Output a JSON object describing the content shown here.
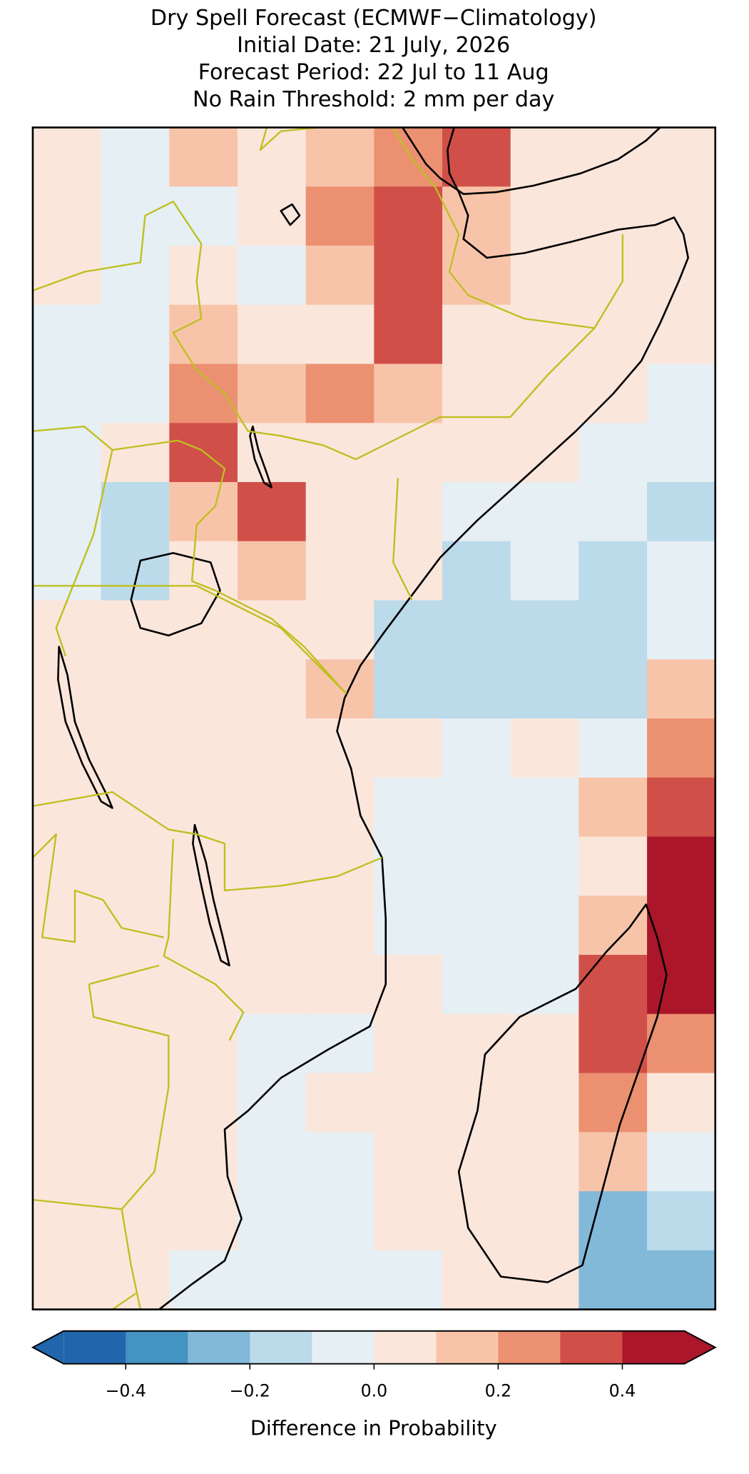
{
  "chart_data": {
    "type": "heatmap",
    "title": [
      "Dry Spell Forecast (ECMWF−Climatology)",
      "Initial Date: 21 July, 2026",
      "Forecast Period: 22 Jul to 11 Aug",
      "No Rain Threshold: 2 mm per day"
    ],
    "z": [
      [
        0.05,
        -0.05,
        0.1,
        0.05,
        0.1,
        0.2,
        0.3,
        0.05,
        0.05,
        0.05
      ],
      [
        0.05,
        -0.05,
        -0.05,
        0.05,
        0.2,
        0.3,
        0.1,
        0.05,
        0.05,
        0.05
      ],
      [
        0.05,
        -0.05,
        0.05,
        -0.05,
        0.1,
        0.35,
        0.15,
        0.05,
        0.05,
        0.05
      ],
      [
        -0.05,
        -0.05,
        0.15,
        0.05,
        0.05,
        0.3,
        0.05,
        0.05,
        0.05,
        0.05
      ],
      [
        -0.05,
        -0.05,
        0.2,
        0.15,
        0.2,
        0.1,
        0.05,
        0.05,
        0.05,
        -0.05
      ],
      [
        -0.05,
        0.05,
        0.3,
        0.05,
        0.05,
        0.05,
        0.05,
        0.05,
        -0.05,
        -0.05
      ],
      [
        -0.05,
        -0.15,
        0.15,
        0.35,
        0.05,
        0.05,
        -0.05,
        -0.05,
        -0.05,
        -0.15
      ],
      [
        -0.05,
        -0.15,
        0.05,
        0.15,
        0.05,
        0.05,
        -0.15,
        -0.05,
        -0.15,
        -0.05
      ],
      [
        0.05,
        0.05,
        0.05,
        0.05,
        0.05,
        -0.15,
        -0.2,
        -0.15,
        -0.2,
        -0.05
      ],
      [
        0.05,
        0.05,
        0.05,
        0.05,
        0.15,
        -0.15,
        -0.15,
        -0.15,
        -0.15,
        0.15
      ],
      [
        0.05,
        0.05,
        0.05,
        0.05,
        0.05,
        0.05,
        -0.05,
        0.05,
        -0.05,
        0.25
      ],
      [
        0.05,
        0.05,
        0.05,
        0.05,
        0.05,
        -0.05,
        -0.05,
        -0.05,
        0.15,
        0.35
      ],
      [
        0.05,
        0.05,
        0.05,
        0.05,
        0.05,
        -0.05,
        -0.05,
        -0.05,
        0.05,
        0.4
      ],
      [
        0.05,
        0.05,
        0.05,
        0.05,
        0.05,
        -0.05,
        -0.05,
        -0.05,
        0.15,
        0.45
      ],
      [
        0.05,
        0.05,
        0.05,
        0.05,
        0.05,
        0.05,
        -0.05,
        -0.05,
        0.35,
        0.42
      ],
      [
        0.05,
        0.05,
        0.05,
        -0.05,
        -0.05,
        0.05,
        0.05,
        0.05,
        0.35,
        0.25
      ],
      [
        0.05,
        0.05,
        0.05,
        -0.05,
        0.05,
        0.05,
        0.05,
        0.05,
        0.25,
        0.05
      ],
      [
        0.05,
        0.05,
        0.05,
        -0.05,
        -0.05,
        0.05,
        0.05,
        0.05,
        0.15,
        -0.05
      ],
      [
        0.05,
        0.05,
        0.05,
        -0.05,
        -0.05,
        0.05,
        0.05,
        0.05,
        -0.25,
        -0.15
      ],
      [
        0.05,
        0.05,
        -0.05,
        -0.05,
        -0.05,
        -0.05,
        0.05,
        0.05,
        -0.25,
        -0.3
      ]
    ],
    "levels": [
      -0.5,
      -0.4,
      -0.3,
      -0.2,
      -0.1,
      0,
      0.1,
      0.2,
      0.3,
      0.4,
      0.5
    ],
    "colors": [
      "#2166ac",
      "#4393c3",
      "#82b8d8",
      "#bbdaea",
      "#e6eff4",
      "#fbe6dc",
      "#f8c4a9",
      "#eb9172",
      "#d05049",
      "#ab162a"
    ],
    "extend": "both",
    "xlim": [
      -0.5,
      0.5
    ],
    "xticks": [
      {
        "value": -0.4,
        "label": "−0.4"
      },
      {
        "value": -0.2,
        "label": "−0.2"
      },
      {
        "value": 0,
        "label": "0.0"
      },
      0.2,
      0.4
    ],
    "xlabel": "Difference in Probability"
  }
}
